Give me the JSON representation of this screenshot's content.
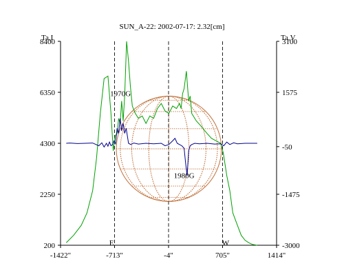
{
  "chart_data": {
    "type": "line",
    "title": "SUN_A-22: 2002-07-17: 2.32[cm]",
    "ylabel_left": "Ta,I",
    "ylabel_right": "Ta,V",
    "xlim": [
      -1422,
      1414
    ],
    "ylim_left": [
      200,
      8400
    ],
    "ylim_right": [
      -3000,
      3100
    ],
    "x_ticks": [
      "-1422\"",
      "-713\"",
      "-4\"",
      "705\"",
      "1414\""
    ],
    "x_tick_values": [
      -1422,
      -713,
      -4,
      705,
      1414
    ],
    "y_left_ticks": [
      "8400",
      "6350",
      "4300",
      "2250",
      "200"
    ],
    "y_left_tick_values": [
      8400,
      6350,
      4300,
      2250,
      200
    ],
    "y_right_ticks": [
      "3100",
      "1575",
      "-50",
      "-1475",
      "-3000"
    ],
    "y_right_tick_values": [
      3100,
      1575,
      -50,
      -1475,
      -3000
    ],
    "vlines": [
      -713,
      -4,
      705
    ],
    "edge_labels": [
      {
        "text": "E",
        "x": -753,
        "y": 200
      },
      {
        "text": "W",
        "x": 745,
        "y": 200
      }
    ],
    "annotations": [
      {
        "text": "1970G",
        "x": -635,
        "y": 6200
      },
      {
        "text": "1980G",
        "x": 200,
        "y": 2900
      }
    ],
    "disk": {
      "center_x": 0,
      "radius_arcsec": 690
    },
    "colors": {
      "intensity": "#00a000",
      "polarization": "#00008b",
      "disk": "#c0703a",
      "axes": "#000000"
    },
    "series": [
      {
        "axis": "left",
        "color": "#00a000",
        "x": [
          -1347,
          -1250,
          -1150,
          -1075,
          -1000,
          -950,
          -900,
          -850,
          -800,
          -760,
          -730,
          -705,
          -680,
          -660,
          -640,
          -620,
          -600,
          -580,
          -555,
          -530,
          -505,
          -480,
          -440,
          -400,
          -350,
          -300,
          -250,
          -200,
          -150,
          -100,
          -50,
          0,
          50,
          100,
          140,
          160,
          180,
          200,
          230,
          260,
          280,
          300,
          320,
          360,
          420,
          500,
          560,
          620,
          680,
          715,
          740,
          760,
          800,
          840,
          900,
          950,
          1000,
          1050,
          1100,
          1160
        ],
        "y": [
          300,
          600,
          1000,
          1500,
          2400,
          3700,
          5500,
          6900,
          7000,
          5500,
          4000,
          4600,
          4700,
          5300,
          5100,
          6000,
          5200,
          6200,
          8400,
          7600,
          6600,
          5800,
          5500,
          5300,
          5400,
          5100,
          5400,
          5300,
          5700,
          5900,
          5600,
          5500,
          5800,
          5700,
          5900,
          5700,
          6300,
          6500,
          7200,
          6000,
          6200,
          5500,
          5400,
          5200,
          5000,
          4700,
          4500,
          4400,
          4300,
          3900,
          3400,
          3000,
          2400,
          1500,
          1000,
          600,
          400,
          300,
          230,
          200
        ]
      },
      {
        "axis": "left",
        "color": "#00008b",
        "x": [
          -1347,
          -1300,
          -1200,
          -1100,
          -1000,
          -920,
          -880,
          -850,
          -820,
          -800,
          -780,
          -760,
          -740,
          -720,
          -700,
          -680,
          -660,
          -640,
          -620,
          -600,
          -580,
          -560,
          -530,
          -500,
          -460,
          -400,
          -300,
          -200,
          -100,
          -50,
          0,
          50,
          80,
          110,
          140,
          170,
          200,
          220,
          240,
          260,
          280,
          300,
          340,
          400,
          500,
          600,
          680,
          720,
          760,
          800,
          850,
          900,
          1000,
          1100,
          1160
        ],
        "y": [
          4300,
          4310,
          4290,
          4300,
          4310,
          4200,
          4320,
          4150,
          4300,
          4180,
          4350,
          4200,
          4250,
          4400,
          4280,
          4900,
          4700,
          5300,
          4800,
          5100,
          4700,
          4900,
          4300,
          4250,
          4310,
          4270,
          4300,
          4280,
          4300,
          4200,
          4250,
          4400,
          4500,
          4300,
          4250,
          4200,
          4100,
          3500,
          3000,
          4000,
          4200,
          4250,
          4300,
          4280,
          4300,
          4270,
          4280,
          4200,
          4350,
          4250,
          4320,
          4280,
          4300,
          4300,
          4300
        ]
      }
    ]
  }
}
